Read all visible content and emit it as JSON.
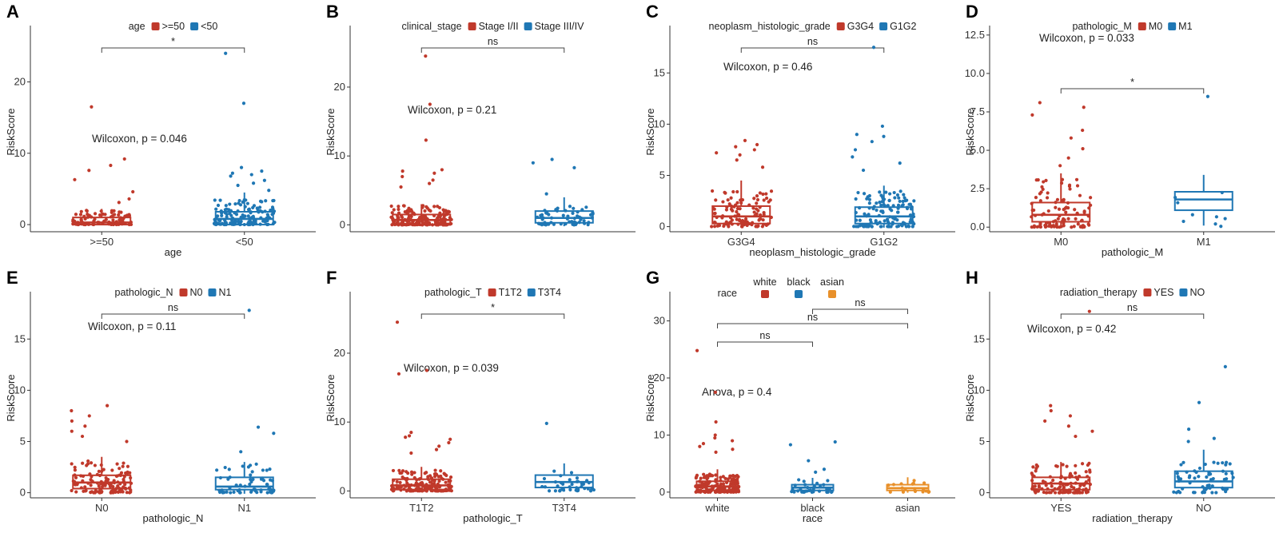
{
  "figure": {
    "colors": {
      "red": "#c0392b",
      "blue": "#1f77b4",
      "orange": "#e8902a"
    }
  },
  "chart_data": [
    {
      "panel": "A",
      "type": "box",
      "legend": {
        "title": "age",
        "entries": [
          ">=50",
          "<50"
        ]
      },
      "xlabel": "age",
      "ylabel": "RiskScore",
      "ylim": [
        -1,
        27
      ],
      "yticks": [
        0,
        10,
        20
      ],
      "ytick_labels": [
        "0",
        "10",
        "20"
      ],
      "groups": [
        {
          "label": ">=50",
          "color": "red",
          "q1": 0,
          "median": 0.3,
          "q3": 1.0,
          "whisker_low": -0.1,
          "whisker_high": 2.2,
          "n": 90,
          "spread": 2.0,
          "outliers": [
            16.5,
            9.2,
            8.3,
            7.6,
            6.3,
            4.6,
            3.6,
            3.1
          ]
        },
        {
          "label": "<50",
          "color": "blue",
          "q1": 0,
          "median": 0.8,
          "q3": 1.8,
          "whisker_low": -0.2,
          "whisker_high": 4.5,
          "n": 140,
          "spread": 3.5,
          "outliers": [
            24.0,
            17.0,
            8.0,
            7.5,
            7.2,
            7.0,
            6.8,
            6.2,
            5.8,
            5.5,
            4.8
          ]
        }
      ],
      "stat_label": "Wilcoxon, p = 0.046",
      "comparisons": [
        {
          "from": 0,
          "to": 1,
          "label": "*"
        }
      ]
    },
    {
      "panel": "B",
      "type": "box",
      "legend": {
        "title": "clinical_stage",
        "entries": [
          "Stage I/II",
          "Stage III/IV"
        ]
      },
      "xlabel": "",
      "ylabel": "RiskScore",
      "ylim": [
        -1,
        28
      ],
      "yticks": [
        0,
        10,
        20
      ],
      "ytick_labels": [
        "0",
        "10",
        "20"
      ],
      "groups": [
        {
          "label": "",
          "color": "red",
          "q1": 0,
          "median": 0.7,
          "q3": 1.5,
          "whisker_low": -0.2,
          "whisker_high": 3.0,
          "n": 180,
          "spread": 2.8,
          "outliers": [
            24.5,
            17.5,
            12.3,
            8.0,
            7.8,
            7.5,
            7.0,
            6.5,
            6.0,
            5.5
          ]
        },
        {
          "label": "",
          "color": "blue",
          "q1": 0.3,
          "median": 1.0,
          "q3": 2.0,
          "whisker_low": -0.2,
          "whisker_high": 4.0,
          "n": 60,
          "spread": 2.8,
          "outliers": [
            9.5,
            9.0,
            8.3,
            4.5
          ]
        }
      ],
      "stat_label": "Wilcoxon, p = 0.21",
      "comparisons": [
        {
          "from": 0,
          "to": 1,
          "label": "ns"
        }
      ]
    },
    {
      "panel": "C",
      "type": "box",
      "legend": {
        "title": "neoplasm_histologic_grade",
        "entries": [
          "G3G4",
          "G1G2"
        ]
      },
      "xlabel": "neoplasm_histologic_grade",
      "ylabel": "RiskScore",
      "ylim": [
        -0.5,
        19
      ],
      "yticks": [
        0,
        5,
        10,
        15
      ],
      "ytick_labels": [
        "0",
        "5",
        "10",
        "15"
      ],
      "groups": [
        {
          "label": "G3G4",
          "color": "red",
          "q1": 0.3,
          "median": 1.0,
          "q3": 2.0,
          "whisker_low": -0.1,
          "whisker_high": 4.5,
          "n": 110,
          "spread": 3.5,
          "outliers": [
            8.4,
            8.0,
            7.8,
            7.5,
            7.2,
            7.0,
            6.5,
            5.8
          ]
        },
        {
          "label": "G1G2",
          "color": "blue",
          "q1": 0.3,
          "median": 1.0,
          "q3": 1.9,
          "whisker_low": -0.1,
          "whisker_high": 4.0,
          "n": 130,
          "spread": 3.5,
          "outliers": [
            17.5,
            9.8,
            9.0,
            8.8,
            8.3,
            7.5,
            6.8,
            6.2,
            5.5
          ]
        }
      ],
      "stat_label": "Wilcoxon, p = 0.46",
      "comparisons": [
        {
          "from": 0,
          "to": 1,
          "label": "ns"
        }
      ]
    },
    {
      "panel": "D",
      "type": "box",
      "legend": {
        "title": "pathologic_M",
        "entries": [
          "M0",
          "M1"
        ]
      },
      "xlabel": "pathologic_M",
      "ylabel": "RiskScore",
      "ylim": [
        -0.3,
        12.7
      ],
      "yticks": [
        0,
        2.5,
        5,
        7.5,
        10,
        12.5
      ],
      "ytick_labels": [
        "0.0",
        "2.5",
        "5.0",
        "7.5",
        "10.0",
        "12.5"
      ],
      "groups": [
        {
          "label": "M0",
          "color": "red",
          "q1": 0.35,
          "median": 0.8,
          "q3": 1.6,
          "whisker_low": -0.05,
          "whisker_high": 3.5,
          "n": 100,
          "spread": 3.2,
          "outliers": [
            8.1,
            7.8,
            7.3,
            6.3,
            5.8,
            5.1,
            4.5,
            4.0
          ]
        },
        {
          "label": "M1",
          "color": "blue",
          "q1": 1.1,
          "median": 1.8,
          "q3": 2.3,
          "whisker_low": 0.1,
          "whisker_high": 3.4,
          "n": 9,
          "spread": 2.4,
          "outliers": [
            8.5
          ]
        }
      ],
      "stat_label": "Wilcoxon, p = 0.033",
      "comparisons": [
        {
          "from": 0,
          "to": 1,
          "label": "*"
        }
      ]
    },
    {
      "panel": "E",
      "type": "box",
      "legend": {
        "title": "pathologic_N",
        "entries": [
          "N0",
          "N1"
        ]
      },
      "xlabel": "pathologic_N",
      "ylabel": "RiskScore",
      "ylim": [
        -0.5,
        19
      ],
      "yticks": [
        0,
        5,
        10,
        15
      ],
      "ytick_labels": [
        "0",
        "5",
        "10",
        "15"
      ],
      "groups": [
        {
          "label": "N0",
          "color": "red",
          "q1": 0.4,
          "median": 1.0,
          "q3": 1.7,
          "whisker_low": -0.1,
          "whisker_high": 3.5,
          "n": 130,
          "spread": 3.2,
          "outliers": [
            8.5,
            8.0,
            7.5,
            7.0,
            6.5,
            6.0,
            5.5,
            5.0
          ]
        },
        {
          "label": "N1",
          "color": "blue",
          "q1": 0.3,
          "median": 0.6,
          "q3": 1.5,
          "whisker_low": -0.1,
          "whisker_high": 3.0,
          "n": 60,
          "spread": 2.8,
          "outliers": [
            17.8,
            6.4,
            5.8,
            4.0
          ]
        }
      ],
      "stat_label": "Wilcoxon, p = 0.11",
      "comparisons": [
        {
          "from": 0,
          "to": 1,
          "label": "ns"
        }
      ]
    },
    {
      "panel": "F",
      "type": "box",
      "legend": {
        "title": "pathologic_T",
        "entries": [
          "T1T2",
          "T3T4"
        ]
      },
      "xlabel": "pathologic_T",
      "ylabel": "RiskScore",
      "ylim": [
        -1,
        28
      ],
      "yticks": [
        0,
        10,
        20
      ],
      "ytick_labels": [
        "0",
        "10",
        "20"
      ],
      "groups": [
        {
          "label": "T1T2",
          "color": "red",
          "q1": 0.2,
          "median": 0.8,
          "q3": 1.7,
          "whisker_low": -0.2,
          "whisker_high": 3.5,
          "n": 170,
          "spread": 3.0,
          "outliers": [
            24.5,
            17.5,
            17.0,
            8.5,
            8.0,
            7.8,
            7.5,
            7.0,
            6.5,
            6.0,
            5.5
          ]
        },
        {
          "label": "T3T4",
          "color": "blue",
          "q1": 0.5,
          "median": 1.3,
          "q3": 2.3,
          "whisker_low": -0.1,
          "whisker_high": 4.0,
          "n": 40,
          "spread": 3.0,
          "outliers": [
            9.8
          ]
        }
      ],
      "stat_label": "Wilcoxon, p = 0.039",
      "comparisons": [
        {
          "from": 0,
          "to": 1,
          "label": "*"
        }
      ]
    },
    {
      "panel": "G",
      "type": "box",
      "legend": {
        "title": "race",
        "entries": [
          "white",
          "black",
          "asian"
        ]
      },
      "xlabel": "race",
      "ylabel": "RiskScore",
      "ylim": [
        -1,
        34
      ],
      "yticks": [
        0,
        10,
        20,
        30
      ],
      "ytick_labels": [
        "0",
        "10",
        "20",
        "30"
      ],
      "groups": [
        {
          "label": "white",
          "color": "red",
          "q1": 0.3,
          "median": 1.0,
          "q3": 1.9,
          "whisker_low": -0.2,
          "whisker_high": 4.0,
          "n": 170,
          "spread": 3.2,
          "outliers": [
            24.8,
            17.5,
            12.3,
            10.0,
            9.5,
            9.0,
            8.5,
            8.0,
            7.5,
            7.0
          ]
        },
        {
          "label": "black",
          "color": "blue",
          "q1": 0.3,
          "median": 0.8,
          "q3": 1.3,
          "whisker_low": -0.1,
          "whisker_high": 2.5,
          "n": 35,
          "spread": 2.2,
          "outliers": [
            8.8,
            8.3,
            5.5,
            4.0,
            3.5
          ]
        },
        {
          "label": "asian",
          "color": "orange",
          "q1": 0.3,
          "median": 0.7,
          "q3": 1.3,
          "whisker_low": -0.1,
          "whisker_high": 2.6,
          "n": 18,
          "spread": 2.2,
          "outliers": []
        }
      ],
      "stat_label": "Anova, p = 0.4",
      "comparisons": [
        {
          "from": 0,
          "to": 1,
          "label": "ns"
        },
        {
          "from": 0,
          "to": 2,
          "label": "ns"
        },
        {
          "from": 1,
          "to": 2,
          "label": "ns"
        }
      ]
    },
    {
      "panel": "H",
      "type": "box",
      "legend": {
        "title": "radiation_therapy",
        "entries": [
          "YES",
          "NO"
        ]
      },
      "xlabel": "radiation_therapy",
      "ylabel": "RiskScore",
      "ylim": [
        -0.5,
        19
      ],
      "yticks": [
        0,
        5,
        10,
        15
      ],
      "ytick_labels": [
        "0",
        "5",
        "10",
        "15"
      ],
      "groups": [
        {
          "label": "YES",
          "color": "red",
          "q1": 0.3,
          "median": 0.9,
          "q3": 1.5,
          "whisker_low": -0.1,
          "whisker_high": 3.0,
          "n": 120,
          "spread": 3.0,
          "outliers": [
            17.7,
            8.5,
            8.0,
            7.5,
            7.0,
            6.5,
            6.0,
            5.5
          ]
        },
        {
          "label": "NO",
          "color": "blue",
          "q1": 0.5,
          "median": 1.1,
          "q3": 2.1,
          "whisker_low": -0.1,
          "whisker_high": 4.2,
          "n": 60,
          "spread": 3.0,
          "outliers": [
            12.3,
            8.8,
            6.2,
            5.3,
            5.0
          ]
        }
      ],
      "stat_label": "Wilcoxon, p = 0.42",
      "comparisons": [
        {
          "from": 0,
          "to": 1,
          "label": "ns"
        }
      ]
    }
  ]
}
